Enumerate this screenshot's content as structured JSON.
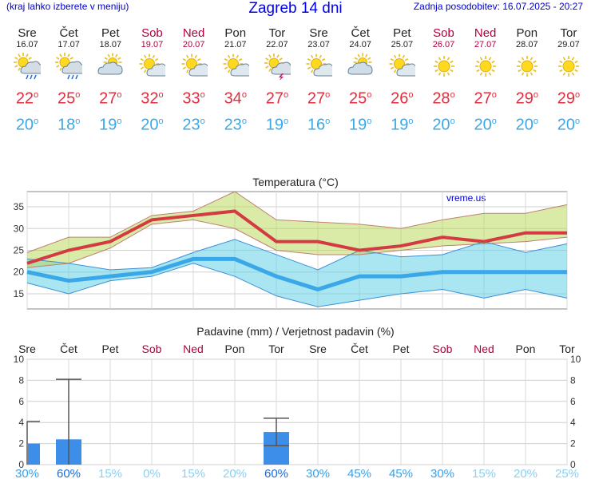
{
  "header": {
    "left_note": "(kraj lahko izberete v meniju)",
    "title": "Zagreb 14 dni",
    "updated": "Zadnja posodobitev: 16.07.2025 - 20:27"
  },
  "colors": {
    "max_line": "#d43a42",
    "min_line": "#3aa8e8",
    "weekend": "#b0003c",
    "precip_bar": "#3d8ee8"
  },
  "days": [
    {
      "name": "Sre",
      "date": "16.07",
      "max": "22",
      "min": "20",
      "icon": "sun-cloud-rain-icon",
      "weekend": false
    },
    {
      "name": "Čet",
      "date": "17.07",
      "max": "25",
      "min": "18",
      "icon": "sun-cloud-rain-icon",
      "weekend": false
    },
    {
      "name": "Pet",
      "date": "18.07",
      "max": "27",
      "min": "19",
      "icon": "cloud-sun-icon",
      "weekend": false
    },
    {
      "name": "Sob",
      "date": "19.07",
      "max": "32",
      "min": "20",
      "icon": "sun-cloud-icon",
      "weekend": true
    },
    {
      "name": "Ned",
      "date": "20.07",
      "max": "33",
      "min": "23",
      "icon": "sun-cloud-icon",
      "weekend": true
    },
    {
      "name": "Pon",
      "date": "21.07",
      "max": "34",
      "min": "23",
      "icon": "sun-cloud-icon",
      "weekend": false
    },
    {
      "name": "Tor",
      "date": "22.07",
      "max": "27",
      "min": "19",
      "icon": "sun-cloud-thunder-icon",
      "weekend": false
    },
    {
      "name": "Sre",
      "date": "23.07",
      "max": "27",
      "min": "16",
      "icon": "sun-cloud-icon",
      "weekend": false
    },
    {
      "name": "Čet",
      "date": "24.07",
      "max": "25",
      "min": "19",
      "icon": "cloud-sun-icon",
      "weekend": false
    },
    {
      "name": "Pet",
      "date": "25.07",
      "max": "26",
      "min": "19",
      "icon": "sun-cloud-icon",
      "weekend": false
    },
    {
      "name": "Sob",
      "date": "26.07",
      "max": "28",
      "min": "20",
      "icon": "sun-icon",
      "weekend": true
    },
    {
      "name": "Ned",
      "date": "27.07",
      "max": "27",
      "min": "20",
      "icon": "sun-icon",
      "weekend": true
    },
    {
      "name": "Pon",
      "date": "28.07",
      "max": "29",
      "min": "20",
      "icon": "sun-icon",
      "weekend": false
    },
    {
      "name": "Tor",
      "date": "29.07",
      "max": "29",
      "min": "20",
      "icon": "sun-icon",
      "weekend": false
    }
  ],
  "chart_data": [
    {
      "type": "line",
      "title": "Temperatura (°C)",
      "watermark": "vreme.us",
      "categories": [
        "16.07",
        "17.07",
        "18.07",
        "19.07",
        "20.07",
        "21.07",
        "22.07",
        "23.07",
        "24.07",
        "25.07",
        "26.07",
        "27.07",
        "28.07",
        "29.07"
      ],
      "yticks": [
        15,
        20,
        25,
        30,
        35
      ],
      "ylim": [
        11.5,
        38.5
      ],
      "grid": true,
      "series": [
        {
          "values": [
            22,
            25,
            27,
            32,
            33,
            34,
            27,
            27,
            25,
            26,
            28,
            27,
            29,
            29
          ]
        },
        {
          "values": [
            20,
            18,
            19,
            20,
            23,
            23,
            19,
            16,
            19,
            19,
            20,
            20,
            20,
            20
          ]
        },
        {
          "values": [
            24.5,
            28,
            28,
            33,
            34,
            38.5,
            32,
            31.5,
            31,
            30,
            32,
            33.5,
            33.5,
            35.5
          ]
        },
        {
          "values": [
            21,
            22,
            25.5,
            31,
            32,
            30,
            25,
            24,
            24,
            25,
            26,
            26.5,
            27,
            28
          ]
        },
        {
          "values": [
            23,
            22,
            20.5,
            21,
            24.5,
            27.5,
            24,
            20.5,
            25,
            23.5,
            24,
            27,
            24.5,
            26.5
          ]
        },
        {
          "values": [
            17.5,
            15,
            18,
            19,
            22,
            19,
            14.5,
            12,
            13.5,
            15,
            16,
            14,
            16,
            14
          ]
        }
      ]
    },
    {
      "type": "bar",
      "title": "Padavine (mm) / Verjetnost padavin (%)",
      "categories": [
        "Sre",
        "Čet",
        "Pet",
        "Sob",
        "Ned",
        "Pon",
        "Tor",
        "Sre",
        "Čet",
        "Pet",
        "Sob",
        "Ned",
        "Pon",
        "Tor"
      ],
      "weekend": [
        false,
        false,
        false,
        true,
        true,
        false,
        false,
        false,
        false,
        false,
        true,
        true,
        false,
        false
      ],
      "values": [
        2.0,
        2.4,
        0,
        0,
        0,
        0,
        3.1,
        0,
        0,
        0,
        0,
        0,
        0,
        0
      ],
      "error_low": [
        0,
        0,
        0,
        0,
        0,
        0,
        1.8,
        0,
        0,
        0,
        0,
        0,
        0,
        0
      ],
      "error_high": [
        4.1,
        8.1,
        0,
        0,
        0,
        0,
        4.4,
        0,
        0,
        0,
        0,
        0,
        0,
        0
      ],
      "probability": [
        "30%",
        "60%",
        "15%",
        "0%",
        "15%",
        "20%",
        "60%",
        "30%",
        "45%",
        "45%",
        "30%",
        "15%",
        "20%",
        "25%"
      ],
      "yticks": [
        0,
        2,
        4,
        6,
        8,
        10
      ],
      "ylim": [
        0,
        10
      ]
    }
  ]
}
